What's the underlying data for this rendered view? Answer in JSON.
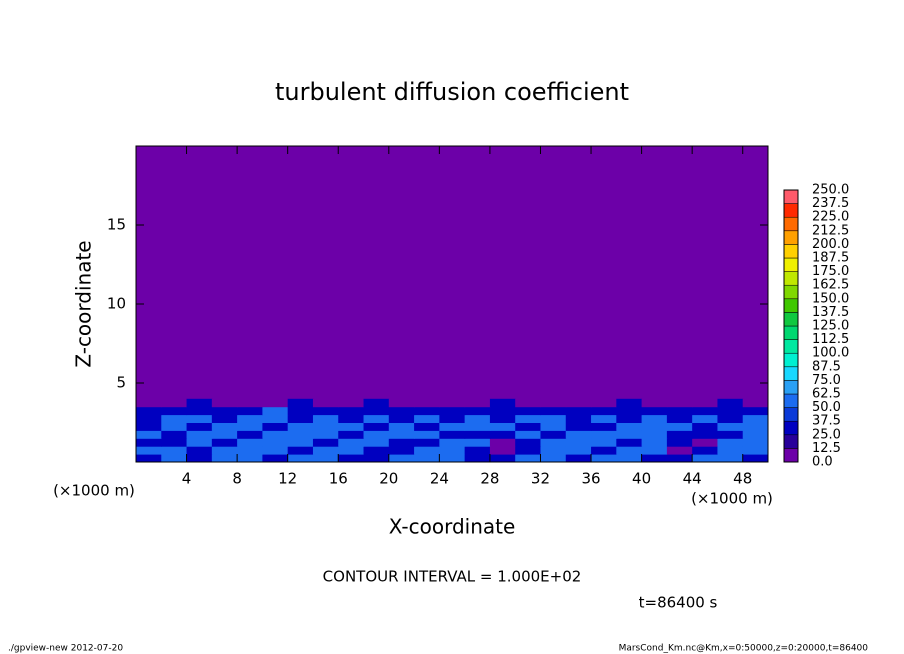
{
  "chart_data": {
    "type": "heatmap",
    "title": "turbulent diffusion coefficient",
    "x_label": "X-coordinate",
    "y_label": "Z-coordinate",
    "x_unit_label": "(×1000 m)",
    "xlim": [
      0,
      50
    ],
    "ylim": [
      0,
      20
    ],
    "xticks": [
      4,
      8,
      12,
      16,
      20,
      24,
      28,
      32,
      36,
      40,
      44,
      48
    ],
    "yticks": [
      5,
      10,
      15
    ],
    "x": [
      1,
      3,
      5,
      7,
      9,
      11,
      13,
      15,
      17,
      19,
      21,
      23,
      25,
      27,
      29,
      31,
      33,
      35,
      37,
      39,
      41,
      43,
      45,
      47,
      49
    ],
    "z": [
      0.25,
      0.75,
      1.25,
      1.75,
      2.25,
      2.75,
      3.25,
      3.75
    ],
    "values": [
      [
        37,
        50,
        25,
        62,
        50,
        37,
        50,
        62,
        37,
        25,
        50,
        62,
        50,
        37,
        25,
        50,
        62,
        37,
        50,
        62,
        37,
        25,
        62,
        50,
        37
      ],
      [
        50,
        62,
        37,
        50,
        62,
        50,
        37,
        50,
        62,
        37,
        25,
        50,
        62,
        37,
        12,
        37,
        50,
        62,
        37,
        50,
        50,
        12,
        37,
        62,
        50
      ],
      [
        37,
        25,
        50,
        37,
        50,
        62,
        50,
        37,
        50,
        62,
        37,
        25,
        50,
        50,
        12,
        37,
        62,
        50,
        62,
        37,
        62,
        25,
        12,
        50,
        62
      ],
      [
        62,
        37,
        62,
        50,
        37,
        50,
        62,
        50,
        37,
        50,
        62,
        50,
        37,
        25,
        37,
        50,
        37,
        62,
        50,
        62,
        50,
        37,
        25,
        37,
        50
      ],
      [
        25,
        50,
        37,
        62,
        50,
        37,
        50,
        62,
        50,
        37,
        50,
        37,
        50,
        62,
        50,
        37,
        50,
        37,
        25,
        50,
        62,
        50,
        37,
        50,
        62
      ],
      [
        37,
        50,
        50,
        37,
        62,
        50,
        37,
        50,
        37,
        50,
        37,
        50,
        37,
        50,
        37,
        62,
        50,
        37,
        50,
        37,
        50,
        37,
        50,
        37,
        50
      ],
      [
        25,
        37,
        37,
        25,
        37,
        50,
        37,
        37,
        25,
        37,
        25,
        37,
        37,
        25,
        37,
        37,
        25,
        37,
        37,
        25,
        37,
        25,
        37,
        37,
        25
      ],
      [
        0,
        12,
        25,
        12,
        0,
        12,
        25,
        12,
        12,
        25,
        12,
        0,
        12,
        12,
        25,
        12,
        0,
        12,
        12,
        25,
        12,
        0,
        12,
        25,
        12
      ]
    ],
    "levels": [
      {
        "value": 0,
        "label": "0.0"
      },
      {
        "value": 12.5,
        "label": "12.5"
      },
      {
        "value": 25,
        "label": "25.0"
      },
      {
        "value": 37.5,
        "label": "37.5"
      },
      {
        "value": 50,
        "label": "50.0"
      },
      {
        "value": 62.5,
        "label": "62.5"
      },
      {
        "value": 75,
        "label": "75.0"
      },
      {
        "value": 87.5,
        "label": "87.5"
      },
      {
        "value": 100,
        "label": "100.0"
      },
      {
        "value": 112.5,
        "label": "112.5"
      },
      {
        "value": 125,
        "label": "125.0"
      },
      {
        "value": 137.5,
        "label": "137.5"
      },
      {
        "value": 150,
        "label": "150.0"
      },
      {
        "value": 162.5,
        "label": "162.5"
      },
      {
        "value": 175,
        "label": "175.0"
      },
      {
        "value": 187.5,
        "label": "187.5"
      },
      {
        "value": 200,
        "label": "200.0"
      },
      {
        "value": 212.5,
        "label": "212.5"
      },
      {
        "value": 225,
        "label": "225.0"
      },
      {
        "value": 237.5,
        "label": "237.5"
      },
      {
        "value": 250,
        "label": "250.0"
      }
    ],
    "colors": [
      "#6c00a8",
      "#28009a",
      "#0000c0",
      "#0a3ad8",
      "#1c6cf0",
      "#2aa0f4",
      "#18d8ff",
      "#00f0d0",
      "#00e8a0",
      "#00d870",
      "#10c840",
      "#40c800",
      "#80d800",
      "#c0e800",
      "#f0f000",
      "#ffd000",
      "#ffa000",
      "#ff6a00",
      "#ff2a00",
      "#ff5a6a"
    ],
    "contour_interval": "CONTOUR INTERVAL = 1.000E+02",
    "time_label": "t=86400 s",
    "footer_left": "./gpview-new  2012-07-20",
    "footer_right": "MarsCond_Km.nc@Km,x=0:50000,z=0:20000,t=86400"
  }
}
